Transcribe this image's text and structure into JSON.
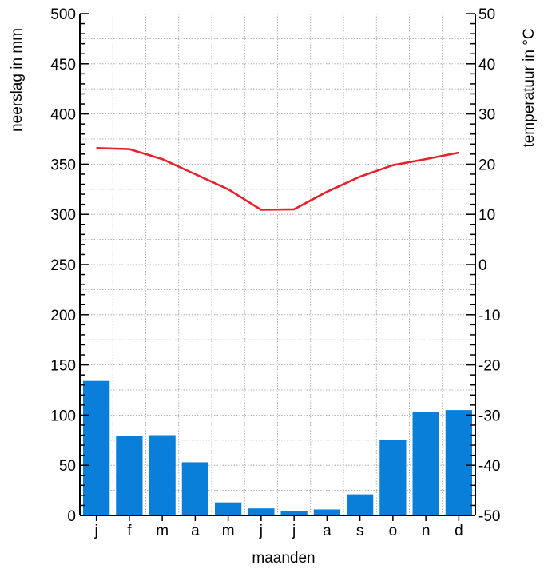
{
  "chart_data": {
    "type": "bar+line",
    "categories": [
      "j",
      "f",
      "m",
      "a",
      "m",
      "j",
      "j",
      "a",
      "s",
      "o",
      "n",
      "d"
    ],
    "xlabel": "maanden",
    "ylabel_left": "neerslag in mm",
    "ylabel_right": "temperatuur in °C",
    "ylim_left": [
      0,
      500
    ],
    "ylim_right": [
      -50,
      50
    ],
    "left_ticks": [
      0,
      50,
      100,
      150,
      200,
      250,
      300,
      350,
      400,
      450,
      500
    ],
    "right_ticks": [
      -50,
      -40,
      -30,
      -20,
      -10,
      0,
      10,
      20,
      30,
      40,
      50
    ],
    "grid": true,
    "series": [
      {
        "kind": "bar",
        "axis": "left",
        "color": "#0a7fd9",
        "values": [
          134,
          79,
          80,
          53,
          13,
          7,
          4,
          6,
          21,
          75,
          103,
          105
        ]
      },
      {
        "kind": "line",
        "axis": "right",
        "color": "#e8202a",
        "values": [
          23.2,
          23.0,
          21.0,
          18.0,
          15.0,
          10.9,
          11.0,
          14.5,
          17.5,
          19.8,
          21.0,
          22.3
        ]
      }
    ]
  }
}
